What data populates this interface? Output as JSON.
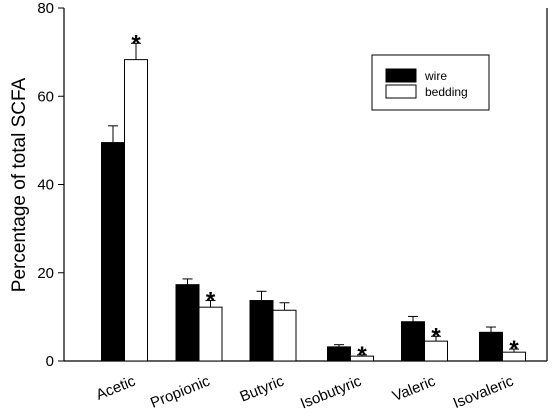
{
  "chart_data": {
    "type": "bar",
    "ylabel": "Percentage of total SCFA",
    "xlabel": "",
    "ylim": [
      0,
      80
    ],
    "yticks": [
      "0",
      "20",
      "40",
      "60",
      "80"
    ],
    "categories": [
      "Acetic",
      "Propionic",
      "Butyric",
      "Isobutyric",
      "Valeric",
      "Isovaleric"
    ],
    "series": [
      {
        "name": "wire",
        "color": "#000000",
        "values": [
          49.5,
          17.3,
          13.7,
          3.2,
          8.9,
          6.5
        ],
        "errors": [
          3.8,
          1.3,
          2.1,
          0.5,
          1.2,
          1.2
        ]
      },
      {
        "name": "bedding",
        "color": "#ffffff",
        "values": [
          68.3,
          12.2,
          11.5,
          1.1,
          4.5,
          2.0
        ],
        "errors": [
          3.7,
          1.5,
          1.7,
          0.3,
          1.1,
          0.7
        ]
      }
    ],
    "significance_marker": "*",
    "significant_categories": [
      "Acetic",
      "Propionic",
      "Isobutyric",
      "Valeric",
      "Isovaleric"
    ],
    "legend_position": "top-right",
    "grid": false
  }
}
